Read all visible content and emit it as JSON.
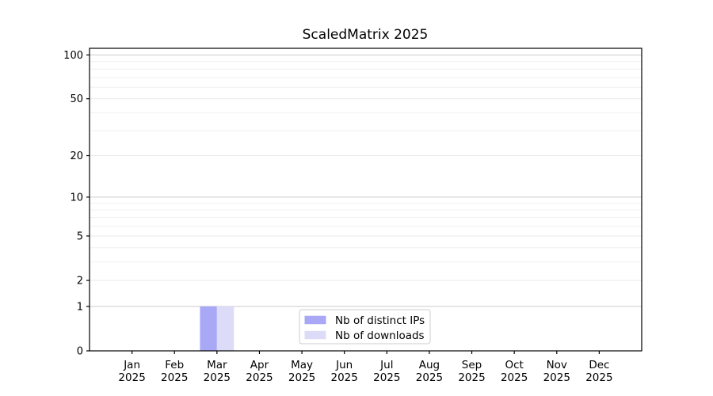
{
  "figure": {
    "title": "ScaledMatrix 2025"
  },
  "chart_data": {
    "type": "bar",
    "title": "ScaledMatrix 2025",
    "categories": [
      "Jan",
      "Feb",
      "Mar",
      "Apr",
      "May",
      "Jun",
      "Jul",
      "Aug",
      "Sep",
      "Oct",
      "Nov",
      "Dec"
    ],
    "tick_year": "2025",
    "series": [
      {
        "name": "Nb of distinct IPs",
        "color": "#a8a8f6",
        "values": [
          0,
          0,
          1,
          0,
          0,
          0,
          0,
          0,
          0,
          0,
          0,
          0
        ]
      },
      {
        "name": "Nb of downloads",
        "color": "#dcdcf8",
        "values": [
          0,
          0,
          1,
          0,
          0,
          0,
          0,
          0,
          0,
          0,
          0,
          0
        ]
      }
    ],
    "xlabel": "",
    "ylabel": "",
    "y_scale": "log1p",
    "y_ticks": [
      0,
      1,
      2,
      5,
      10,
      20,
      50,
      100
    ],
    "y_ticks_emphasized": [
      1,
      10,
      100
    ],
    "y_minor_ticks": [
      3,
      4,
      6,
      7,
      8,
      9,
      30,
      40,
      60,
      70,
      80,
      90
    ],
    "ylim": [
      0,
      111
    ],
    "grid": "both",
    "legend": {
      "position": "lower center",
      "entries": [
        "Nb of distinct IPs",
        "Nb of downloads"
      ]
    }
  },
  "colors": {
    "background": "#ffffff",
    "spine": "#000000",
    "tick_text": "#000000",
    "grid_major": "#cccccc",
    "grid_mid": "#e8e8e8",
    "grid_minor": "#f0f0f0",
    "legend_border": "#cccccc",
    "legend_bg": "#ffffff"
  }
}
